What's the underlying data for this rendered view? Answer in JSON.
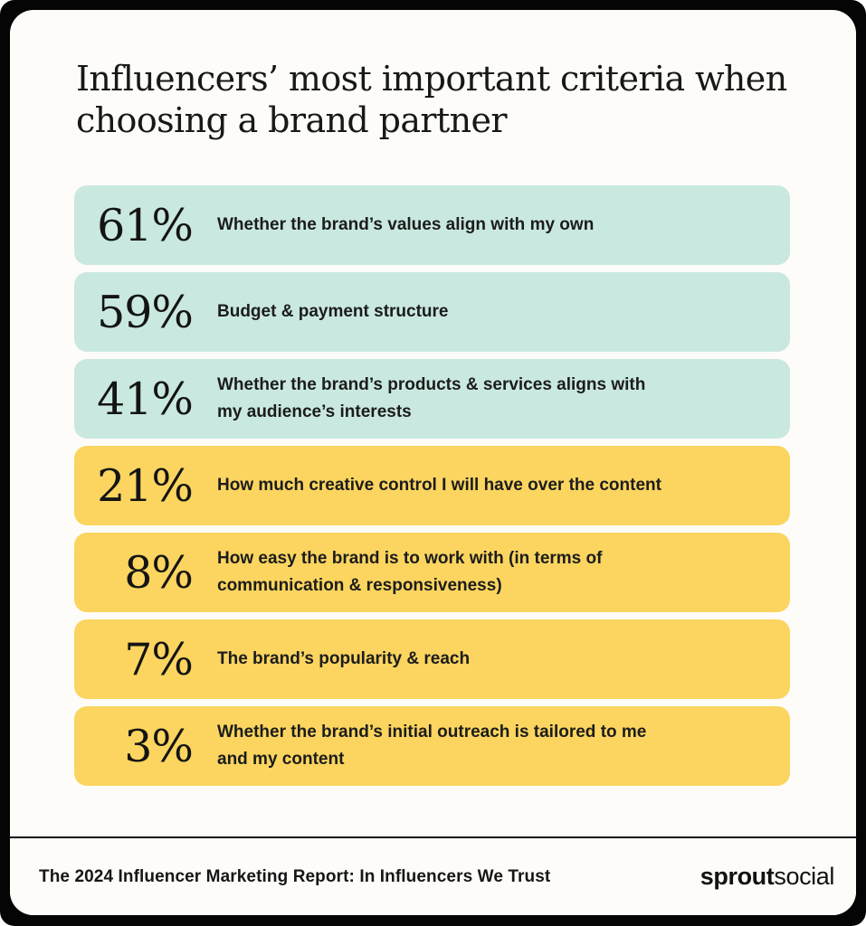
{
  "header": {
    "title": "Influencers’ most important criteria when\nchoosing a brand partner"
  },
  "rows": [
    {
      "value": "61%",
      "label": "Whether the brand’s values align with my own",
      "bg": "#c9e8e0"
    },
    {
      "value": "59%",
      "label": "Budget & payment structure",
      "bg": "#c9e8e0"
    },
    {
      "value": "41%",
      "label": "Whether the brand’s products & services aligns with\nmy audience’s interests",
      "bg": "#c9e8e0"
    },
    {
      "value": "21%",
      "label": "How much creative control I will have over the content",
      "bg": "#fbd55f"
    },
    {
      "value": "8%",
      "label": "How easy the brand is to work with (in terms of\ncommunication & responsiveness)",
      "bg": "#fbd55f"
    },
    {
      "value": "7%",
      "label": "The brand’s popularity & reach",
      "bg": "#fbd55f"
    },
    {
      "value": "3%",
      "label": "Whether the brand’s initial outreach is tailored to me\nand my content",
      "bg": "#fbd55f"
    }
  ],
  "footer": {
    "source": "The 2024 Influencer Marketing Report: In Influencers We Trust",
    "logo_bold": "sprout",
    "logo_light": "social"
  },
  "colors": {
    "mint": "#c9e8e0",
    "yellow": "#fbd55f",
    "frame": "#050505",
    "card": "#fdfcf9",
    "text": "#181818"
  },
  "chart_data": {
    "type": "bar",
    "title": "Influencers’ most important criteria when choosing a brand partner",
    "categories": [
      "Whether the brand’s values align with my own",
      "Budget & payment structure",
      "Whether the brand’s products & services aligns with my audience’s interests",
      "How much creative control I will have over the content",
      "How easy the brand is to work with (in terms of communication & responsiveness)",
      "The brand’s popularity & reach",
      "Whether the brand’s initial outreach is tailored to me and my content"
    ],
    "values": [
      61,
      59,
      41,
      21,
      8,
      7,
      3
    ],
    "unit": "%",
    "xlabel": "",
    "ylabel": "",
    "legend": "none",
    "grid": false,
    "layout": "horizontal list of equal-width rounded rows; top 3 rows mint (#c9e8e0), bottom 4 rows yellow (#fbd55f)",
    "source_note": "The 2024 Influencer Marketing Report: In Influencers We Trust",
    "brand": "sproutsocial"
  }
}
